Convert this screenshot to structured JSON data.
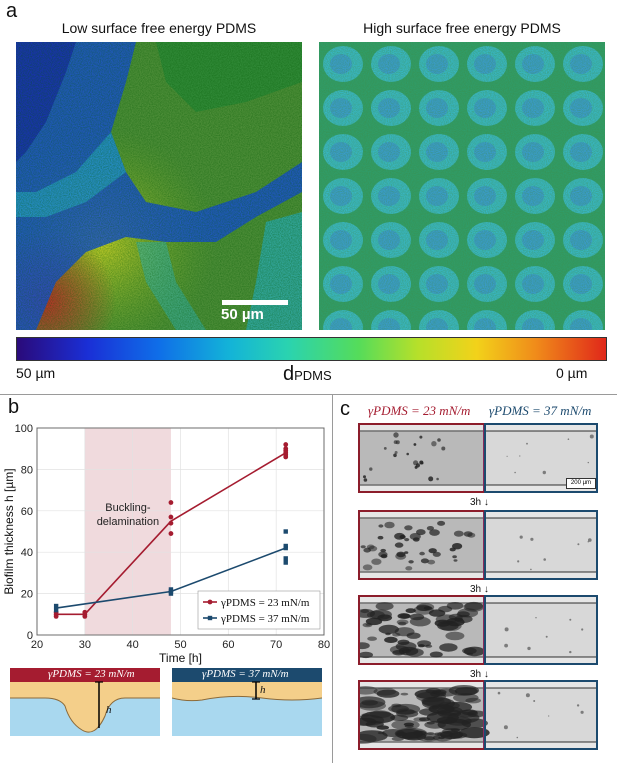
{
  "panel_a": {
    "letter": "a",
    "left_title": "Low surface free energy PDMS",
    "right_title": "High surface free energy PDMS",
    "scale_bar": "50 µm",
    "colorbar": {
      "min_label": "50 µm",
      "max_label": "0 µm",
      "title_main": "d",
      "title_sub": "PDMS"
    }
  },
  "panel_b": {
    "letter": "b",
    "shade_label_line1": "Buckling-",
    "shade_label_line2": "delamination",
    "schematic_left_label": "γPDMS = 23 mN/m",
    "schematic_right_label": "γPDMS = 37 mN/m",
    "schematic_h": "h"
  },
  "panel_c": {
    "letter": "c",
    "label_left": "γPDMS = 23 mN/m",
    "label_right": "γPDMS = 37 mN/m",
    "time_steps": [
      "3h",
      "3h",
      "3h"
    ],
    "scale_bar": "200 µm"
  },
  "chart_data": {
    "type": "line",
    "xlabel": "Time [h]",
    "ylabel": "Biofilm thickness h [µm]",
    "xlim": [
      20,
      80
    ],
    "ylim": [
      0,
      100
    ],
    "xticks": [
      20,
      30,
      40,
      50,
      60,
      70,
      80
    ],
    "yticks": [
      0,
      20,
      40,
      60,
      80,
      100
    ],
    "grid": true,
    "legend_position": "bottom-right",
    "shaded_region": {
      "x": [
        30,
        48
      ],
      "label": "Buckling-delamination"
    },
    "series": [
      {
        "name": "γPDMS = 23 mN/m",
        "color": "#a51c30",
        "marker": "circle",
        "x": [
          24,
          30,
          48,
          72
        ],
        "values": [
          10,
          10,
          55,
          88
        ],
        "scatter": [
          [
            24,
            9
          ],
          [
            24,
            11
          ],
          [
            24,
            10
          ],
          [
            30,
            9
          ],
          [
            30,
            10
          ],
          [
            30,
            11
          ],
          [
            48,
            49
          ],
          [
            48,
            54
          ],
          [
            48,
            57
          ],
          [
            48,
            64
          ],
          [
            72,
            86
          ],
          [
            72,
            87
          ],
          [
            72,
            88
          ],
          [
            72,
            89
          ],
          [
            72,
            90
          ],
          [
            72,
            92
          ]
        ]
      },
      {
        "name": "γPDMS = 37 mN/m",
        "color": "#1c4a6e",
        "marker": "square",
        "x": [
          24,
          48,
          72
        ],
        "values": [
          13,
          21,
          42
        ],
        "scatter": [
          [
            24,
            12
          ],
          [
            24,
            14
          ],
          [
            48,
            20
          ],
          [
            48,
            21
          ],
          [
            48,
            22
          ],
          [
            72,
            35
          ],
          [
            72,
            37
          ],
          [
            72,
            42
          ],
          [
            72,
            43
          ],
          [
            72,
            50
          ]
        ]
      }
    ]
  },
  "colors": {
    "red": "#a51c30",
    "blue": "#1c4a6e",
    "shade": "#f0dadd"
  }
}
